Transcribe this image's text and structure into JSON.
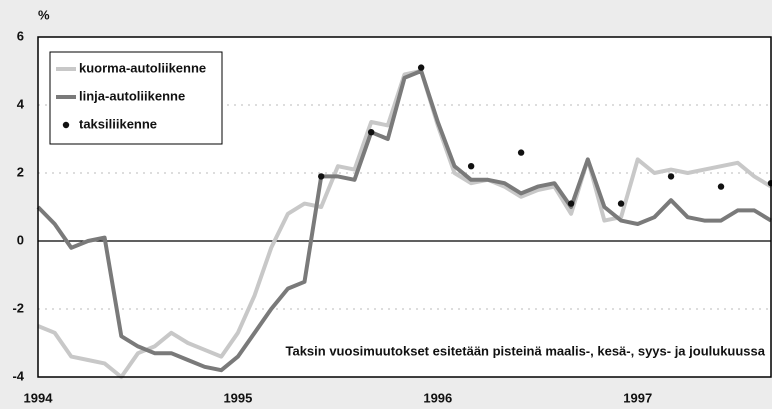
{
  "chart_data": {
    "type": "line",
    "y_label": "%",
    "annotation": "Taksin vuosimuutokset esitetään pisteinä maalis-, kesä-, syys- ja joulukuussa",
    "categories": [
      "1994",
      null,
      null,
      null,
      null,
      null,
      null,
      null,
      null,
      null,
      null,
      null,
      "1995",
      null,
      null,
      null,
      null,
      null,
      null,
      null,
      null,
      null,
      null,
      null,
      "1996",
      null,
      null,
      null,
      null,
      null,
      null,
      null,
      null,
      null,
      null,
      null,
      "1997",
      null,
      null,
      null,
      null,
      null,
      null,
      null,
      null
    ],
    "series": [
      {
        "name": "kuorma-autoliikenne",
        "color": "#c8c8c8",
        "marker": "line",
        "values": [
          -2.5,
          -2.7,
          -3.4,
          -3.5,
          -3.6,
          -4.0,
          -3.3,
          -3.1,
          -2.7,
          -3.0,
          -3.2,
          -3.4,
          -2.7,
          -1.6,
          -0.2,
          0.8,
          1.1,
          1.0,
          2.2,
          2.1,
          3.5,
          3.4,
          4.9,
          5.0,
          3.4,
          2.0,
          1.7,
          1.8,
          1.6,
          1.3,
          1.5,
          1.6,
          0.8,
          2.4,
          0.6,
          0.7,
          2.4,
          2.0,
          2.1,
          2.0,
          2.1,
          2.2,
          2.3,
          1.9,
          1.6
        ]
      },
      {
        "name": "linja-autoliikenne",
        "color": "#7a7a7a",
        "marker": "line",
        "values": [
          1.0,
          0.5,
          -0.2,
          0.0,
          0.1,
          -2.8,
          -3.1,
          -3.3,
          -3.3,
          -3.5,
          -3.7,
          -3.8,
          -3.4,
          -2.7,
          -2.0,
          -1.4,
          -1.2,
          1.9,
          1.9,
          1.8,
          3.2,
          3.0,
          4.8,
          5.0,
          3.5,
          2.2,
          1.8,
          1.8,
          1.7,
          1.4,
          1.6,
          1.7,
          1.0,
          2.4,
          1.0,
          0.6,
          0.5,
          0.7,
          1.2,
          0.7,
          0.6,
          0.6,
          0.9,
          0.9,
          0.6
        ]
      },
      {
        "name": "taksiliikenne",
        "color": "#111111",
        "marker": "dot",
        "values": [
          null,
          null,
          null,
          null,
          null,
          null,
          null,
          null,
          null,
          null,
          null,
          null,
          null,
          null,
          null,
          null,
          null,
          1.9,
          null,
          null,
          3.2,
          null,
          null,
          5.1,
          null,
          null,
          2.2,
          null,
          null,
          2.6,
          null,
          null,
          1.1,
          null,
          null,
          1.1,
          null,
          null,
          1.9,
          null,
          null,
          1.6,
          null,
          null,
          1.7
        ]
      }
    ],
    "ylim": [
      -4,
      6
    ],
    "yticks": [
      -4,
      -2,
      0,
      2,
      4,
      6
    ],
    "grid": true,
    "legend": "upper left"
  }
}
